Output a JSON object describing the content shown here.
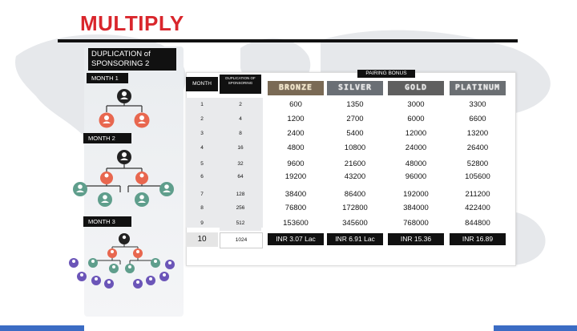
{
  "title": "MULTIPLY",
  "left": {
    "duplication_heading": "DUPLICATION of SPONSORING 2",
    "months": [
      "MONTH 1",
      "MONTH 2",
      "MONTH 3"
    ]
  },
  "table": {
    "month_header": "MONTH",
    "dup_header": "DUPLICATION OF SPONSORING",
    "pairing_header": "PAIRING BONUS",
    "tiers": [
      "BRONZE",
      "SILVER",
      "GOLD",
      "PLATINUM"
    ],
    "rows": [
      {
        "month": "1",
        "dup": "2",
        "bronze": "600",
        "silver": "1350",
        "gold": "3000",
        "platinum": "3300"
      },
      {
        "month": "2",
        "dup": "4",
        "bronze": "1200",
        "silver": "2700",
        "gold": "6000",
        "platinum": "6600"
      },
      {
        "month": "3",
        "dup": "8",
        "bronze": "2400",
        "silver": "5400",
        "gold": "12000",
        "platinum": "13200"
      },
      {
        "month": "4",
        "dup": "16",
        "bronze": "4800",
        "silver": "10800",
        "gold": "24000",
        "platinum": "26400"
      },
      {
        "month": "5",
        "dup": "32",
        "bronze": "9600",
        "silver": "21600",
        "gold": "48000",
        "platinum": "52800"
      },
      {
        "month": "6",
        "dup": "64",
        "bronze": "19200",
        "silver": "43200",
        "gold": "96000",
        "platinum": "105600"
      },
      {
        "month": "7",
        "dup": "128",
        "bronze": "38400",
        "silver": "86400",
        "gold": "192000",
        "platinum": "211200"
      },
      {
        "month": "8",
        "dup": "256",
        "bronze": "76800",
        "silver": "172800",
        "gold": "384000",
        "platinum": "422400"
      },
      {
        "month": "9",
        "dup": "512",
        "bronze": "153600",
        "silver": "345600",
        "gold": "768000",
        "platinum": "844800"
      },
      {
        "month": "10",
        "dup": "1024",
        "bronze": "INR 3.07 Lac",
        "silver": "INR 6.91 Lac",
        "gold": "INR 15.36",
        "platinum": "INR 16.89"
      }
    ]
  },
  "colors": {
    "accent_red": "#d9262c",
    "node_red": "#e8674f",
    "node_teal": "#5f9e8c",
    "node_purple": "#6b55b8",
    "node_dark": "#222222"
  },
  "icons": [
    "world-map-background",
    "person-node-icon"
  ]
}
